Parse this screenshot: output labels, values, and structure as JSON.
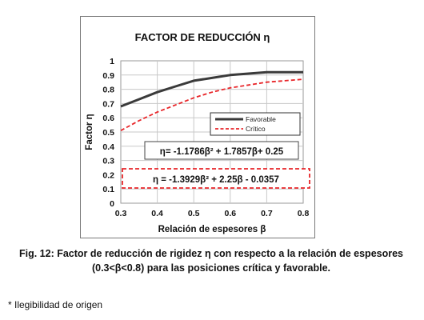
{
  "chart_data": {
    "type": "line",
    "title": "FACTOR DE REDUCCIÓN η",
    "xlabel": "Relación de espesores β",
    "ylabel": "Factor η",
    "xlim": [
      0.3,
      0.8
    ],
    "ylim": [
      0,
      1
    ],
    "x_ticks": [
      "0.3",
      "0.4",
      "0.5",
      "0.6",
      "0.7",
      "0.8"
    ],
    "y_ticks": [
      "0",
      "0.1",
      "0.2",
      "0.3",
      "0.4",
      "0.5",
      "0.6",
      "0.7",
      "0.8",
      "0.9",
      "1"
    ],
    "grid": true,
    "legend_position": "right",
    "series": [
      {
        "name": "Favorable",
        "color": "#3a3a3a",
        "style": "solid",
        "x": [
          0.3,
          0.35,
          0.4,
          0.45,
          0.5,
          0.55,
          0.6,
          0.65,
          0.7,
          0.75,
          0.8
        ],
        "y": [
          0.68,
          0.73,
          0.78,
          0.82,
          0.86,
          0.88,
          0.9,
          0.91,
          0.92,
          0.92,
          0.92
        ]
      },
      {
        "name": "Crítico",
        "color": "#e8262a",
        "style": "dashed",
        "x": [
          0.3,
          0.35,
          0.4,
          0.45,
          0.5,
          0.55,
          0.6,
          0.65,
          0.7,
          0.75,
          0.8
        ],
        "y": [
          0.51,
          0.58,
          0.64,
          0.69,
          0.74,
          0.78,
          0.81,
          0.83,
          0.85,
          0.86,
          0.87
        ]
      }
    ],
    "annotations": [
      {
        "text": "η= -1.1786β² + 1.7857β+ 0.25",
        "box": "solid"
      },
      {
        "text": "η = -1.3929β² + 2.25β - 0.0357",
        "box": "dashed-red"
      }
    ]
  },
  "caption": {
    "line1": "Fig. 12: Factor de reducción de rigidez η con respecto a la relación de espesores",
    "line2": "(0.3<β<0.8) para las posiciones crítica y favorable."
  },
  "footnote": "* Ilegibilidad de origen"
}
